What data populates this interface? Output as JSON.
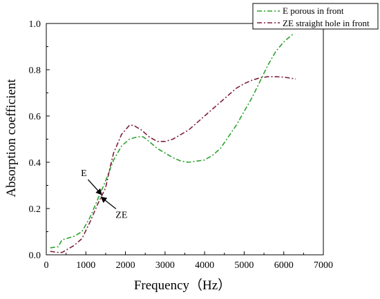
{
  "chart_data": {
    "type": "line",
    "xlabel": "Frequency（Hz）",
    "ylabel": "Absorption coefficient",
    "xlim": [
      0,
      7000
    ],
    "ylim": [
      0,
      1.0
    ],
    "xticks": [
      0,
      1000,
      2000,
      3000,
      4000,
      5000,
      6000,
      7000
    ],
    "yticks": [
      0.0,
      0.2,
      0.4,
      0.6,
      0.8,
      1.0
    ],
    "ytick_labels": [
      "0.0",
      "0.2",
      "0.4",
      "0.6",
      "0.8",
      "1.0"
    ],
    "grid": false,
    "legend_position": "top-right",
    "series": [
      {
        "name": "E porous in front",
        "color": "#2ca02c",
        "dash": "dash-dot",
        "x": [
          100,
          300,
          400,
          500,
          700,
          900,
          1100,
          1300,
          1500,
          1700,
          1900,
          2100,
          2300,
          2450,
          2600,
          2800,
          3000,
          3200,
          3400,
          3600,
          3800,
          4000,
          4200,
          4400,
          4600,
          4800,
          5000,
          5200,
          5400,
          5600,
          5800,
          6000,
          6200,
          6250
        ],
        "y": [
          0.03,
          0.035,
          0.065,
          0.07,
          0.08,
          0.1,
          0.16,
          0.24,
          0.32,
          0.41,
          0.47,
          0.5,
          0.51,
          0.51,
          0.49,
          0.46,
          0.44,
          0.42,
          0.405,
          0.4,
          0.405,
          0.41,
          0.43,
          0.46,
          0.51,
          0.56,
          0.62,
          0.68,
          0.75,
          0.82,
          0.88,
          0.92,
          0.95,
          0.955
        ]
      },
      {
        "name": "ZE straight hole in front",
        "color": "#7b1f3a",
        "dash": "dash-dot",
        "x": [
          100,
          300,
          400,
          500,
          700,
          900,
          1100,
          1300,
          1500,
          1600,
          1700,
          1900,
          2100,
          2200,
          2400,
          2600,
          2800,
          3000,
          3200,
          3400,
          3600,
          3800,
          4000,
          4200,
          4400,
          4600,
          4800,
          5000,
          5200,
          5400,
          5600,
          5800,
          6000,
          6200,
          6300
        ],
        "y": [
          0.015,
          0.01,
          0.01,
          0.02,
          0.04,
          0.07,
          0.14,
          0.22,
          0.29,
          0.37,
          0.44,
          0.52,
          0.56,
          0.56,
          0.54,
          0.51,
          0.49,
          0.49,
          0.5,
          0.52,
          0.54,
          0.57,
          0.6,
          0.63,
          0.66,
          0.69,
          0.72,
          0.74,
          0.755,
          0.765,
          0.77,
          0.77,
          0.768,
          0.763,
          0.76
        ]
      }
    ],
    "annotations": [
      {
        "text": "E",
        "point": [
          1400,
          0.26
        ],
        "label_at": [
          950,
          0.34
        ]
      },
      {
        "text": "ZE",
        "point": [
          1380,
          0.25
        ],
        "label_at": [
          1900,
          0.16
        ]
      }
    ]
  }
}
